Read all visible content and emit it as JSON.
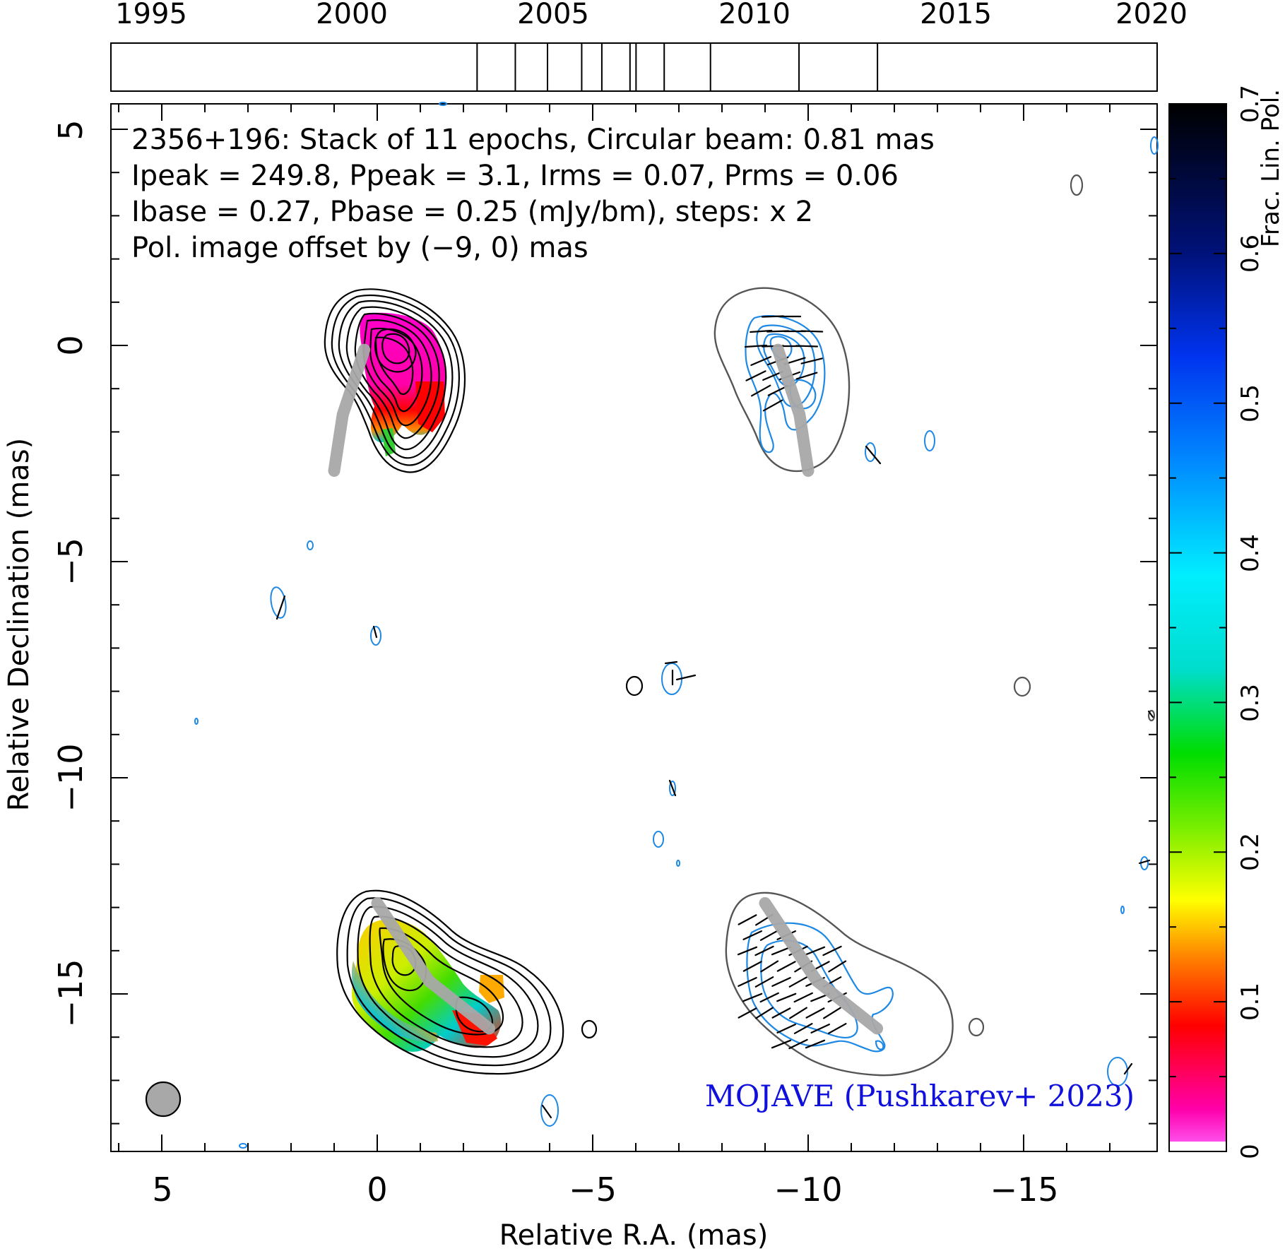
{
  "timeline": {
    "year_labels": [
      "1995",
      "2000",
      "2005",
      "2010",
      "2015",
      "2020"
    ],
    "range": [
      1994.5,
      2020.5
    ],
    "epochs": [
      2003.6,
      2004.55,
      2005.35,
      2006.2,
      2006.7,
      2007.4,
      2007.55,
      2008.25,
      2009.4,
      2011.6,
      2013.55
    ]
  },
  "header": {
    "line1": "2356+196: Stack of 11 epochs, Circular beam: 0.81 mas",
    "line2": "Ipeak = 249.8, Ppeak = 3.1, Irms = 0.07, Prms = 0.06",
    "line3": "Ibase = 0.27, Pbase = 0.25 (mJy/bm), steps: x 2",
    "line4": "Pol. image offset by (−9, 0) mas"
  },
  "credit": "MOJAVE (Pushkarev+ 2023)",
  "colors": {
    "pol_offset_text": "#1e88e5",
    "credit": "#1010dd",
    "ridge": "#a8a8a8",
    "stokes_i_contour": "#000000",
    "pol_contour": "#1e88e5",
    "beam": "#a8a8a8"
  },
  "chart_data": {
    "type": "radio map",
    "source": "2356+196",
    "xlabel": "Relative R.A. (mas)",
    "ylabel": "Relative Declination (mas)",
    "xlim": [
      6.2,
      -18.0
    ],
    "ylim": [
      -18.5,
      5.8
    ],
    "x_ticks": [
      5,
      0,
      -5,
      -10,
      -15
    ],
    "y_ticks": [
      5,
      0,
      -5,
      -10,
      -15
    ],
    "x_tick_labels": [
      "5",
      "0",
      "−5",
      "−10",
      "−15"
    ],
    "y_tick_labels": [
      "5",
      "0",
      "−5",
      "−10",
      "−15"
    ],
    "beam": {
      "diameter_mas": 0.81,
      "x": 5.0,
      "y": -17.6
    },
    "colorbar": {
      "label": "Frac. Lin. Pol.",
      "range": [
        0,
        0.7
      ],
      "ticks": [
        0,
        0.1,
        0.2,
        0.3,
        0.4,
        0.5,
        0.6,
        0.7
      ],
      "tick_labels": [
        "0",
        "0.1",
        "0.2",
        "0.3",
        "0.4",
        "0.5",
        "0.6",
        "0.7"
      ]
    },
    "panels": [
      {
        "name": "fractional polarization, Stokes I contours",
        "core": [
          0.3,
          -0.1
        ],
        "ridge": [
          [
            0.3,
            -0.1
          ],
          [
            0.8,
            -1.6
          ],
          [
            1.0,
            -2.9
          ]
        ]
      },
      {
        "name": "polarization vectors, offset",
        "core": [
          -9.3,
          -0.1
        ],
        "ridge": [
          [
            -9.3,
            -0.1
          ],
          [
            -9.8,
            -1.6
          ],
          [
            -10.0,
            -2.9
          ]
        ]
      },
      {
        "name": "fractional polarization (lower)",
        "core": [
          -0.6,
          -14.3
        ],
        "ridge": [
          [
            0.0,
            -12.9
          ],
          [
            -1.2,
            -14.7
          ],
          [
            -2.6,
            -15.8
          ]
        ]
      },
      {
        "name": "polarization vectors (lower)",
        "core": [
          -9.6,
          -14.3
        ],
        "ridge": [
          [
            -9.0,
            -12.9
          ],
          [
            -10.2,
            -14.7
          ],
          [
            -11.6,
            -15.8
          ]
        ]
      }
    ]
  }
}
